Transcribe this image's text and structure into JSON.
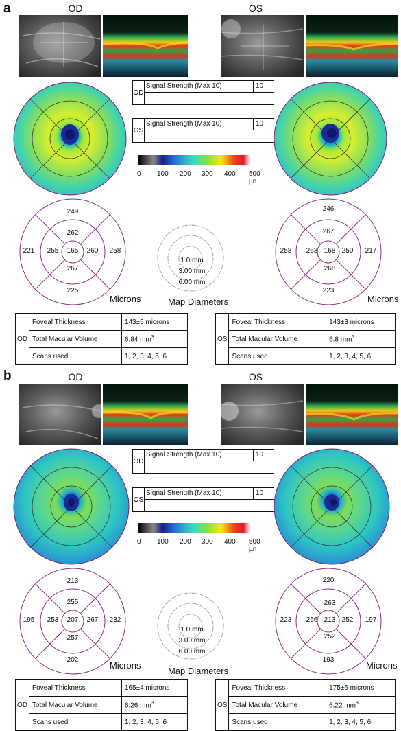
{
  "panels": [
    {
      "letter": "a",
      "od_label": "OD",
      "os_label": "OS",
      "signal": {
        "od": {
          "eye": "OD",
          "label": "Signal Strength (Max 10)",
          "value": "10"
        },
        "os": {
          "eye": "OS",
          "label": "Signal Strength (Max 10)",
          "value": "10"
        }
      },
      "scale": {
        "ticks": [
          "0",
          "100",
          "200",
          "300",
          "400",
          "500 µn"
        ]
      },
      "od_sectors": {
        "top": "249",
        "inner_top": "262",
        "left": "221",
        "inner_left": "255",
        "center": "165",
        "inner_right": "260",
        "right": "258",
        "inner_bottom": "267",
        "bottom": "225"
      },
      "os_sectors": {
        "top": "246",
        "inner_top": "267",
        "left": "258",
        "inner_left": "263",
        "center": "168",
        "inner_right": "250",
        "right": "217",
        "inner_bottom": "268",
        "bottom": "223"
      },
      "microns_label": "Microns",
      "map_diameters": {
        "d1": "1.0 mm",
        "d3": "3.00 mm",
        "d6": "6.00 mm",
        "title": "Map Diameters"
      },
      "od_table": {
        "eye": "OD",
        "r1_label": "Foveal Thickness",
        "r1_value": "143±5 microns",
        "r2_label": "Total Macular Volume",
        "r2_value": "6.84 mm",
        "r2_sup": "3",
        "r3_label": "Scans used",
        "r3_value": "1, 2, 3, 4, 5, 6"
      },
      "os_table": {
        "eye": "OS",
        "r1_label": "Foveal Thickness",
        "r1_value": "143±3 microns",
        "r2_label": "Total Macular Volume",
        "r2_value": "6.8 mm",
        "r2_sup": "3",
        "r3_label": "Scans used",
        "r3_value": "1, 2, 3, 4, 5, 6"
      }
    },
    {
      "letter": "b",
      "od_label": "OD",
      "os_label": "OS",
      "signal": {
        "od": {
          "eye": "OD",
          "label": "Signal Strength (Max 10)",
          "value": "10"
        },
        "os": {
          "eye": "OS",
          "label": "Signal Strength (Max 10)",
          "value": "10"
        }
      },
      "scale": {
        "ticks": [
          "0",
          "100",
          "200",
          "300",
          "400",
          "500 µn"
        ]
      },
      "od_sectors": {
        "top": "213",
        "inner_top": "255",
        "left": "195",
        "inner_left": "253",
        "center": "207",
        "inner_right": "267",
        "right": "232",
        "inner_bottom": "257",
        "bottom": "202"
      },
      "os_sectors": {
        "top": "220",
        "inner_top": "263",
        "left": "223",
        "inner_left": "266",
        "center": "213",
        "inner_right": "252",
        "right": "197",
        "inner_bottom": "252",
        "bottom": "193"
      },
      "microns_label": "Microns",
      "map_diameters": {
        "d1": "1.0 mm",
        "d3": "3.00 mm",
        "d6": "6.00 mm",
        "title": "Map Diameters"
      },
      "od_table": {
        "eye": "OD",
        "r1_label": "Foveal Thickness",
        "r1_value": "165±4 microns",
        "r2_label": "Total Macular Volume",
        "r2_value": "6.26 mm",
        "r2_sup": "3",
        "r3_label": "Scans used",
        "r3_value": "1, 2, 3, 4, 5, 6"
      },
      "os_table": {
        "eye": "OS",
        "r1_label": "Foveal Thickness",
        "r1_value": "175±6 microns",
        "r2_label": "Total Macular Volume",
        "r2_value": "6.22 mm",
        "r2_sup": "3",
        "r3_label": "Scans used",
        "r3_value": "1, 2, 3, 4, 5, 6"
      }
    }
  ]
}
